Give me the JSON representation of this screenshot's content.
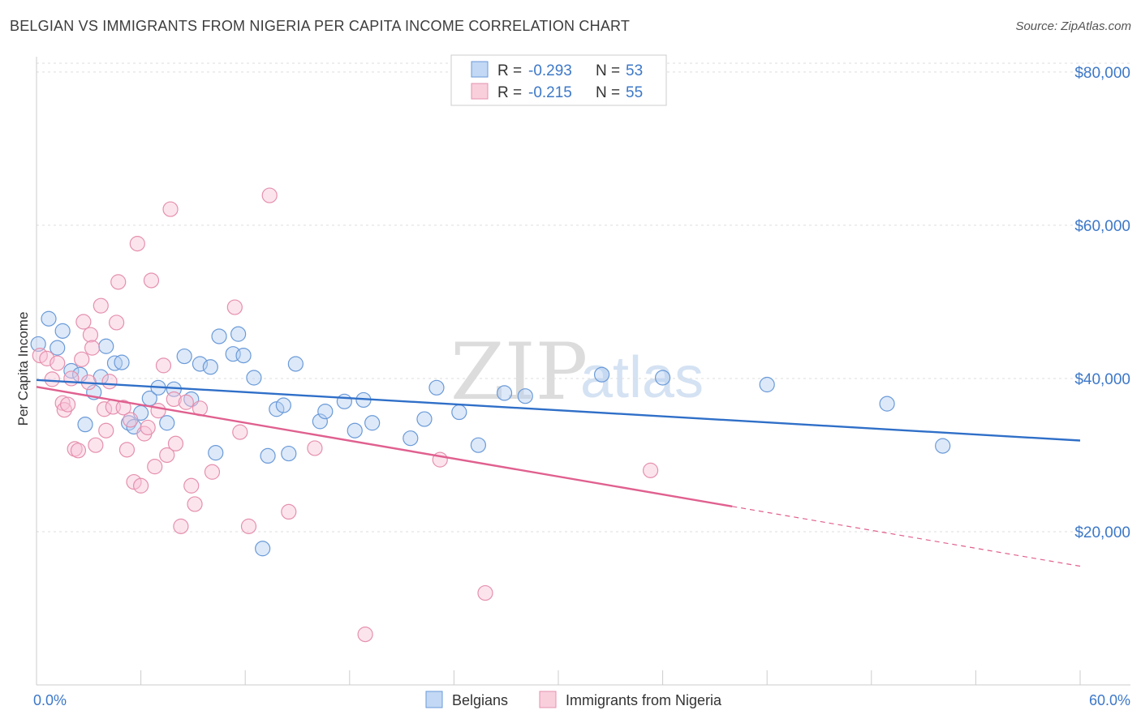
{
  "title": "BELGIAN VS IMMIGRANTS FROM NIGERIA PER CAPITA INCOME CORRELATION CHART",
  "source": "Source: ZipAtlas.com",
  "watermark": {
    "part1": "ZIP",
    "part2": "atlas"
  },
  "legend": {
    "r_label": "R =",
    "n_label": "N =",
    "rows": [
      {
        "r": "-0.293",
        "n": "53"
      },
      {
        "r": "-0.215",
        "n": "55"
      }
    ]
  },
  "bottom_legend": [
    "Belgians",
    "Immigrants from Nigeria"
  ],
  "chart_data": {
    "type": "scatter",
    "ylabel": "Per Capita Income",
    "x_tick_labels": [
      "0.0%",
      "60.0%"
    ],
    "y_tick_labels": [
      "$20,000",
      "$40,000",
      "$60,000",
      "$80,000"
    ],
    "xlim": [
      0,
      60
    ],
    "ylim": [
      0,
      82000
    ],
    "colors": {
      "Belgians": "#4a86d4",
      "Immigrants from Nigeria": "#e5729b"
    },
    "series": [
      {
        "name": "Belgians",
        "trend": {
          "x": [
            0,
            60
          ],
          "y": [
            39800,
            31900
          ],
          "dash_from": null
        },
        "points": [
          [
            0.1,
            44500
          ],
          [
            0.7,
            47800
          ],
          [
            1.2,
            44000
          ],
          [
            1.5,
            46200
          ],
          [
            2.0,
            41000
          ],
          [
            2.5,
            40500
          ],
          [
            2.8,
            34000
          ],
          [
            3.3,
            38200
          ],
          [
            3.7,
            40200
          ],
          [
            4.0,
            44200
          ],
          [
            4.5,
            42000
          ],
          [
            4.9,
            42100
          ],
          [
            5.3,
            34200
          ],
          [
            5.6,
            33700
          ],
          [
            6.0,
            35500
          ],
          [
            6.5,
            37400
          ],
          [
            7.0,
            38800
          ],
          [
            7.5,
            34200
          ],
          [
            7.9,
            38600
          ],
          [
            8.5,
            42900
          ],
          [
            8.9,
            37300
          ],
          [
            9.4,
            41900
          ],
          [
            10.0,
            41500
          ],
          [
            10.5,
            45500
          ],
          [
            10.3,
            30300
          ],
          [
            11.3,
            43200
          ],
          [
            11.6,
            45800
          ],
          [
            11.9,
            43000
          ],
          [
            12.5,
            40100
          ],
          [
            13.0,
            17800
          ],
          [
            13.3,
            29900
          ],
          [
            13.8,
            36000
          ],
          [
            14.2,
            36500
          ],
          [
            14.5,
            30200
          ],
          [
            14.9,
            41900
          ],
          [
            16.3,
            34400
          ],
          [
            16.6,
            35700
          ],
          [
            17.7,
            37000
          ],
          [
            18.3,
            33200
          ],
          [
            18.8,
            37200
          ],
          [
            19.3,
            34200
          ],
          [
            21.5,
            32200
          ],
          [
            22.3,
            34700
          ],
          [
            23.0,
            38800
          ],
          [
            24.3,
            35600
          ],
          [
            25.4,
            31300
          ],
          [
            26.9,
            38100
          ],
          [
            28.1,
            37700
          ],
          [
            32.5,
            40500
          ],
          [
            36.0,
            40100
          ],
          [
            42.0,
            39200
          ],
          [
            48.9,
            36700
          ],
          [
            52.1,
            31200
          ]
        ]
      },
      {
        "name": "Immigrants from Nigeria",
        "trend": {
          "x": [
            0,
            60
          ],
          "y": [
            38900,
            15500
          ],
          "dash_from": 40
        },
        "points": [
          [
            0.2,
            43000
          ],
          [
            0.6,
            42600
          ],
          [
            0.9,
            39900
          ],
          [
            1.2,
            42000
          ],
          [
            1.5,
            36800
          ],
          [
            1.6,
            35900
          ],
          [
            1.8,
            36600
          ],
          [
            2.0,
            40000
          ],
          [
            2.2,
            30800
          ],
          [
            2.4,
            30600
          ],
          [
            2.6,
            42500
          ],
          [
            3.0,
            39500
          ],
          [
            3.1,
            45700
          ],
          [
            3.2,
            44000
          ],
          [
            3.4,
            31300
          ],
          [
            3.7,
            49500
          ],
          [
            3.9,
            36000
          ],
          [
            4.0,
            33200
          ],
          [
            4.2,
            39600
          ],
          [
            4.4,
            36300
          ],
          [
            4.6,
            47300
          ],
          [
            5.0,
            36200
          ],
          [
            5.2,
            30700
          ],
          [
            5.4,
            34600
          ],
          [
            5.6,
            26500
          ],
          [
            5.8,
            57600
          ],
          [
            6.0,
            26000
          ],
          [
            6.2,
            32800
          ],
          [
            6.4,
            33600
          ],
          [
            6.6,
            52800
          ],
          [
            6.8,
            28500
          ],
          [
            7.0,
            35800
          ],
          [
            7.3,
            41700
          ],
          [
            7.5,
            30000
          ],
          [
            7.7,
            62100
          ],
          [
            7.9,
            37300
          ],
          [
            8.3,
            20700
          ],
          [
            8.6,
            36900
          ],
          [
            8.9,
            26000
          ],
          [
            9.1,
            23600
          ],
          [
            9.4,
            36100
          ],
          [
            10.1,
            27800
          ],
          [
            11.4,
            49300
          ],
          [
            11.7,
            33000
          ],
          [
            12.2,
            20700
          ],
          [
            13.4,
            63900
          ],
          [
            14.5,
            22600
          ],
          [
            16.0,
            30900
          ],
          [
            18.9,
            6600
          ],
          [
            23.2,
            29400
          ],
          [
            25.8,
            12000
          ],
          [
            35.3,
            28000
          ],
          [
            8.0,
            31500
          ],
          [
            4.7,
            52600
          ],
          [
            2.7,
            47400
          ]
        ]
      }
    ]
  }
}
